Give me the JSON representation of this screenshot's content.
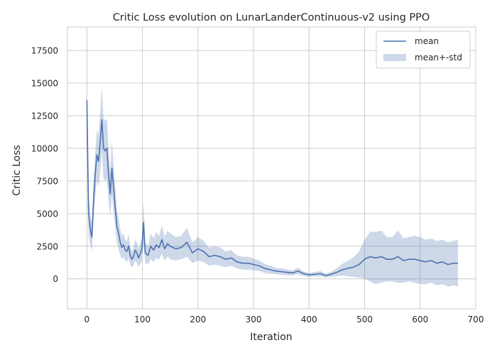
{
  "chart_data": {
    "type": "line",
    "title": "Critic Loss evolution on LunarLanderContinuous-v2 using PPO",
    "xlabel": "Iteration",
    "ylabel": "Critic Loss",
    "xlim": [
      -35,
      700
    ],
    "ylim": [
      -2300,
      19300
    ],
    "xticks": [
      0,
      100,
      200,
      300,
      400,
      500,
      600,
      700
    ],
    "yticks": [
      0,
      2500,
      5000,
      7500,
      10000,
      12500,
      15000,
      17500
    ],
    "grid": true,
    "legend_position": "top-right",
    "colors": {
      "mean_line": "#4c72b0",
      "std_band": "#4c72b0"
    },
    "series": [
      {
        "name": "mean",
        "x": [
          0,
          3,
          6,
          9,
          12,
          15,
          18,
          21,
          24,
          27,
          30,
          33,
          36,
          39,
          42,
          45,
          48,
          51,
          54,
          57,
          60,
          63,
          66,
          69,
          72,
          75,
          78,
          81,
          84,
          87,
          90,
          93,
          96,
          99,
          102,
          105,
          110,
          115,
          120,
          125,
          130,
          135,
          140,
          145,
          150,
          160,
          170,
          180,
          190,
          200,
          210,
          220,
          230,
          240,
          250,
          260,
          270,
          280,
          290,
          300,
          310,
          320,
          330,
          340,
          350,
          360,
          370,
          380,
          390,
          400,
          410,
          420,
          430,
          440,
          450,
          460,
          470,
          480,
          490,
          500,
          510,
          520,
          530,
          540,
          550,
          560,
          570,
          580,
          590,
          600,
          610,
          620,
          630,
          640,
          650,
          660,
          668
        ],
        "values": [
          13700,
          5000,
          3800,
          3200,
          6000,
          8000,
          9500,
          9000,
          10500,
          12200,
          10000,
          9800,
          10000,
          8000,
          6500,
          8500,
          7000,
          5500,
          4000,
          3500,
          2800,
          2400,
          2600,
          2200,
          2100,
          2500,
          1800,
          1500,
          1700,
          2200,
          2000,
          1600,
          1900,
          2300,
          4300,
          2000,
          1800,
          2500,
          2200,
          2600,
          2400,
          3000,
          2300,
          2700,
          2500,
          2300,
          2400,
          2800,
          2000,
          2300,
          2100,
          1700,
          1800,
          1700,
          1500,
          1600,
          1300,
          1200,
          1200,
          1100,
          1000,
          800,
          700,
          600,
          550,
          500,
          450,
          600,
          400,
          300,
          350,
          400,
          250,
          350,
          500,
          700,
          800,
          900,
          1100,
          1500,
          1700,
          1600,
          1700,
          1500,
          1500,
          1700,
          1400,
          1500,
          1500,
          1400,
          1300,
          1400,
          1200,
          1300,
          1100,
          1200,
          1200
        ]
      },
      {
        "name": "mean+-std",
        "lower": [
          13200,
          3200,
          2600,
          2100,
          4500,
          6300,
          7600,
          7000,
          8200,
          9700,
          7700,
          7500,
          7700,
          6000,
          4800,
          6400,
          5200,
          3900,
          2800,
          2300,
          1800,
          1500,
          1700,
          1400,
          1300,
          1600,
          1100,
          900,
          1000,
          1400,
          1200,
          900,
          1100,
          1400,
          2700,
          1200,
          1100,
          1500,
          1300,
          1600,
          1500,
          1900,
          1400,
          1700,
          1500,
          1400,
          1500,
          1700,
          1200,
          1400,
          1300,
          1000,
          1100,
          1000,
          900,
          1000,
          800,
          700,
          700,
          650,
          600,
          450,
          400,
          350,
          300,
          280,
          250,
          350,
          220,
          150,
          180,
          200,
          100,
          150,
          200,
          250,
          200,
          150,
          100,
          0,
          -200,
          -400,
          -300,
          -200,
          -200,
          -300,
          -300,
          -200,
          -300,
          -400,
          -400,
          -300,
          -500,
          -400,
          -600,
          -500,
          -600
        ],
        "upper": [
          14200,
          6800,
          5000,
          4300,
          7500,
          9700,
          11400,
          11000,
          12800,
          14700,
          12300,
          12100,
          12300,
          10000,
          8200,
          10600,
          8800,
          7100,
          5200,
          4700,
          3800,
          3300,
          3500,
          3000,
          2900,
          3400,
          2500,
          2100,
          2400,
          3000,
          2800,
          2300,
          2700,
          3200,
          5900,
          2800,
          2500,
          3500,
          3100,
          3600,
          3300,
          4100,
          3200,
          3700,
          3500,
          3200,
          3300,
          3900,
          2800,
          3200,
          2900,
          2400,
          2500,
          2400,
          2100,
          2200,
          1800,
          1700,
          1700,
          1550,
          1400,
          1150,
          1000,
          850,
          800,
          720,
          650,
          850,
          580,
          450,
          520,
          600,
          400,
          550,
          800,
          1150,
          1400,
          1650,
          2100,
          3000,
          3600,
          3600,
          3700,
          3200,
          3200,
          3700,
          3100,
          3200,
          3300,
          3200,
          3000,
          3100,
          2900,
          3000,
          2800,
          2900,
          3000
        ]
      }
    ]
  }
}
